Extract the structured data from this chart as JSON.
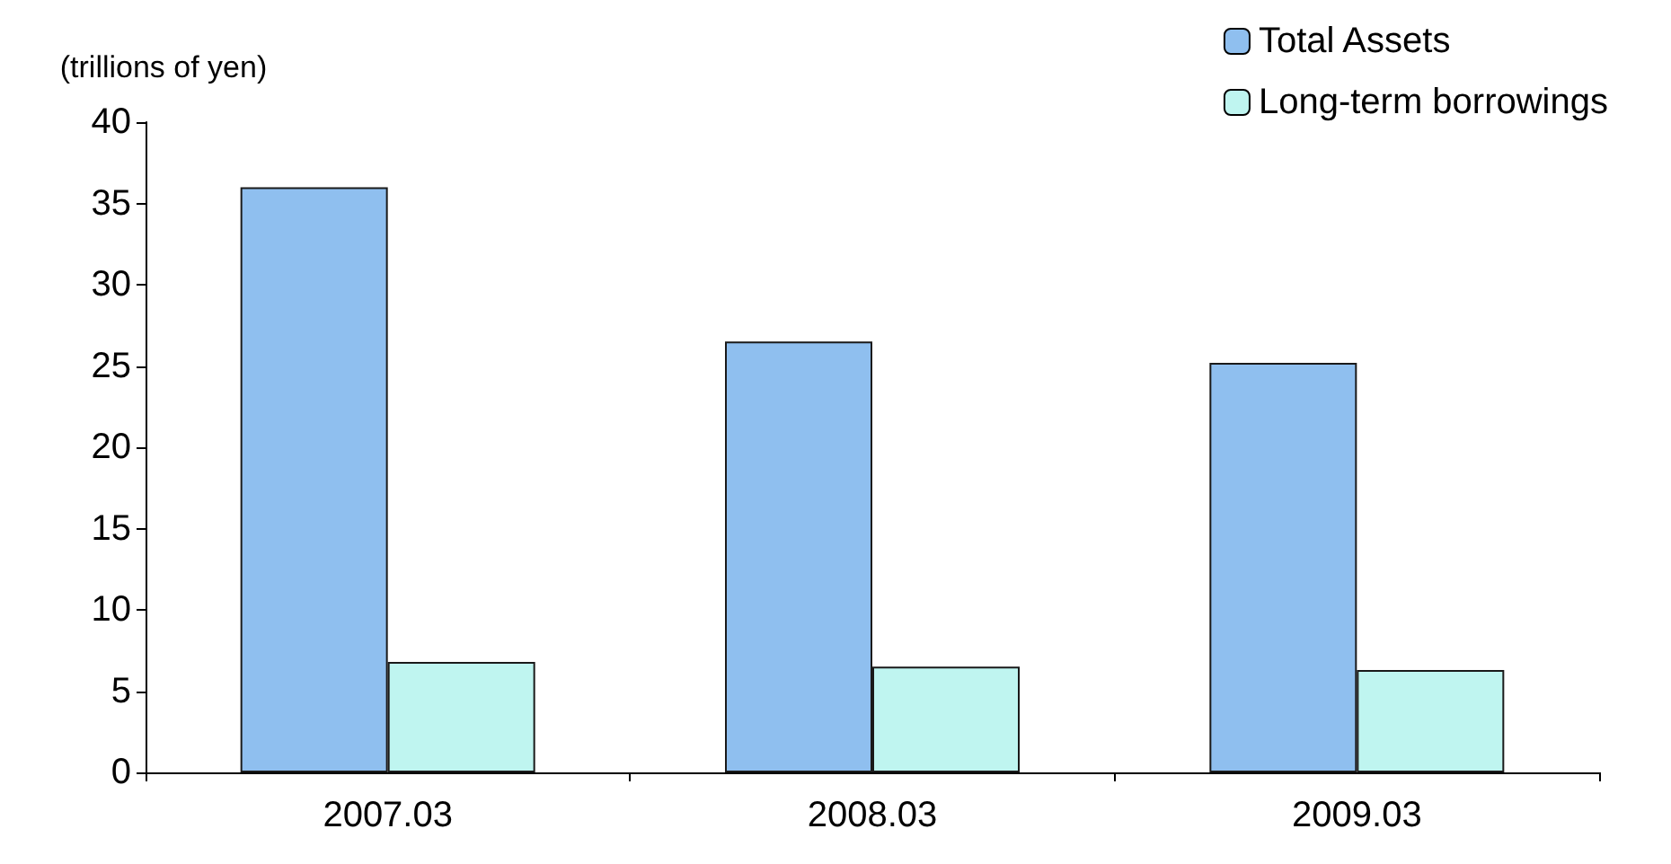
{
  "chart_data": {
    "type": "bar",
    "ylabel": "(trillions of yen)",
    "categories": [
      "2007.03",
      "2008.03",
      "2009.03"
    ],
    "series": [
      {
        "name": "Total Assets",
        "color": "#8fbfef",
        "values": [
          36.0,
          26.5,
          25.2
        ]
      },
      {
        "name": "Long-term borrowings",
        "color": "#bff5f0",
        "values": [
          6.8,
          6.5,
          6.3
        ]
      }
    ],
    "ylim": [
      0,
      40
    ],
    "yticks": [
      0,
      5,
      10,
      15,
      20,
      25,
      30,
      35,
      40
    ],
    "grid": false,
    "legend": "top right"
  }
}
